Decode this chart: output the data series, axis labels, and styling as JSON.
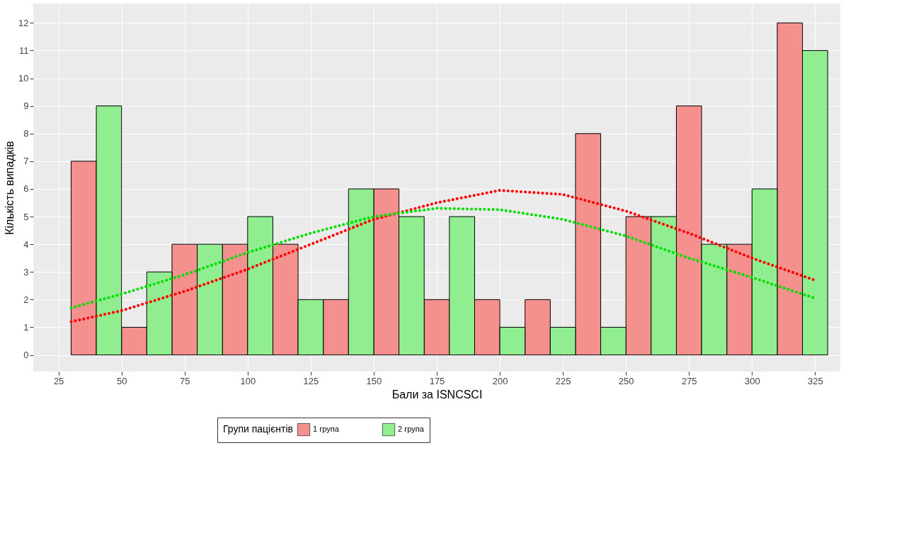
{
  "chart_data": {
    "type": "histogram",
    "xlabel": "Бали за ISNCSCI",
    "ylabel": "Кількість випадків",
    "legend_title": "Групи пацієнтів",
    "bins": [
      30,
      50,
      70,
      90,
      110,
      130,
      150,
      170,
      190,
      210,
      230,
      250,
      270,
      290,
      310,
      330
    ],
    "series": [
      {
        "name": "1 група",
        "color": "#f4908e",
        "values": [
          7,
          1,
          4,
          4,
          4,
          2,
          6,
          2,
          2,
          2,
          8,
          5,
          9,
          4,
          12
        ]
      },
      {
        "name": "2 група",
        "color": "#90ee90",
        "values": [
          9,
          3,
          4,
          5,
          2,
          6,
          5,
          5,
          1,
          1,
          1,
          5,
          4,
          6,
          11
        ]
      },
      {
        "type": "line",
        "color": "#ff0000",
        "line_style": "dotted",
        "x": [
          30,
          50,
          75,
          100,
          125,
          150,
          175,
          200,
          225,
          250,
          275,
          300,
          325
        ],
        "values": [
          1.2,
          1.6,
          2.3,
          3.1,
          4.0,
          4.9,
          5.5,
          5.95,
          5.8,
          5.2,
          4.4,
          3.5,
          2.7
        ]
      },
      {
        "type": "line",
        "color": "#00dd00",
        "line_style": "dotted",
        "x": [
          30,
          50,
          75,
          100,
          125,
          150,
          175,
          200,
          225,
          250,
          275,
          300,
          325
        ],
        "values": [
          1.7,
          2.2,
          2.9,
          3.7,
          4.4,
          5.0,
          5.3,
          5.25,
          4.9,
          4.3,
          3.5,
          2.8,
          2.05
        ]
      }
    ],
    "xlim": [
      15,
      335
    ],
    "xticks": [
      25,
      50,
      75,
      100,
      125,
      150,
      175,
      200,
      225,
      250,
      275,
      300,
      325
    ],
    "ylim": [
      -0.6,
      12.7
    ],
    "yticks": [
      0,
      1,
      2,
      3,
      4,
      5,
      6,
      7,
      8,
      9,
      10,
      11,
      12
    ],
    "grid": true,
    "legend": "bottom"
  }
}
